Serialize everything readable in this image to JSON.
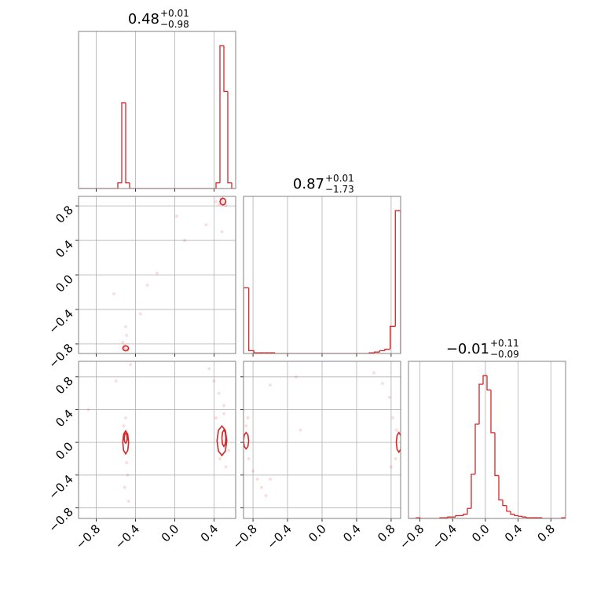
{
  "chart_data": [
    {
      "type": "histogram",
      "title": "0.48",
      "title_upper": "+0.01",
      "title_lower": "−0.98",
      "color": "#d62728",
      "grid": true,
      "bins": [
        -0.98,
        -0.94,
        -0.9,
        -0.86,
        -0.82,
        -0.78,
        -0.74,
        -0.7,
        -0.66,
        -0.62,
        -0.58,
        -0.54,
        -0.5,
        -0.46,
        -0.42,
        -0.38,
        -0.34,
        -0.3,
        -0.26,
        -0.22,
        -0.18,
        -0.14,
        -0.1,
        -0.06,
        -0.02,
        0.02,
        0.06,
        0.1,
        0.14,
        0.18,
        0.22,
        0.26,
        0.3,
        0.34,
        0.38,
        0.42,
        0.46,
        0.5,
        0.54,
        0.58,
        0.62
      ],
      "values": [
        0,
        0,
        0,
        0,
        0,
        0,
        0,
        0,
        0,
        0,
        0.04,
        0.6,
        0.04,
        0,
        0,
        0,
        0,
        0,
        0,
        0,
        0,
        0,
        0,
        0,
        0,
        0,
        0,
        0,
        0,
        0,
        0,
        0,
        0,
        0,
        0,
        0.04,
        1.0,
        0.68,
        0.04,
        0
      ],
      "xlim": [
        -0.98,
        0.62
      ],
      "xticks": [
        -0.8,
        -0.4,
        0,
        0.4
      ],
      "ylim": [
        0,
        1.1
      ]
    },
    {
      "type": "scatter",
      "color": "#d62728",
      "grid": true,
      "x": [
        -0.52,
        -0.5,
        -0.48,
        -0.51,
        -0.5,
        -0.49,
        -0.53,
        -0.35,
        -0.18,
        -0.28,
        -0.62,
        0.1,
        0.02,
        0.32,
        0.45,
        0.48,
        0.5,
        0.52,
        0.47,
        0.42,
        0.48
      ],
      "y": [
        -0.84,
        -0.86,
        -0.87,
        -0.82,
        -0.6,
        -0.7,
        -0.78,
        -0.45,
        0.02,
        -0.12,
        -0.22,
        0.4,
        0.68,
        0.58,
        0.82,
        0.86,
        0.84,
        0.8,
        0.88,
        0.85,
        0.5
      ],
      "contours": [
        {
          "x": [
            0.52,
            0.511,
            0.49,
            0.469,
            0.46,
            0.469,
            0.49,
            0.511
          ],
          "y": [
            0.85,
            0.878,
            0.89,
            0.878,
            0.85,
            0.822,
            0.81,
            0.822
          ]
        },
        {
          "x": [
            -0.47,
            -0.479,
            -0.5,
            -0.521,
            -0.53,
            -0.521,
            -0.5,
            -0.479
          ],
          "y": [
            -0.85,
            -0.829,
            -0.82,
            -0.829,
            -0.85,
            -0.871,
            -0.88,
            -0.871
          ]
        }
      ],
      "xlim": [
        -0.98,
        0.62
      ],
      "xticks": [
        -0.8,
        -0.4,
        0,
        0.4
      ],
      "ylim": [
        -0.91,
        0.91
      ],
      "yticks": [
        {
          "value": -0.8,
          "label": "−0.8"
        },
        {
          "value": -0.4,
          "label": "−0.4"
        },
        {
          "value": 0,
          "label": "0.0"
        },
        0.4,
        0.8
      ]
    },
    {
      "type": "histogram",
      "title": "0.87",
      "title_upper": "+0.01",
      "title_lower": "−1.73",
      "color": "#d62728",
      "grid": true,
      "bins": [
        -0.91,
        -0.849,
        -0.789,
        -0.728,
        -0.667,
        -0.607,
        -0.546,
        -0.485,
        -0.425,
        -0.364,
        -0.303,
        -0.243,
        -0.182,
        -0.121,
        -0.061,
        0.0,
        0.061,
        0.121,
        0.182,
        0.243,
        0.303,
        0.364,
        0.425,
        0.485,
        0.546,
        0.607,
        0.667,
        0.728,
        0.789,
        0.849,
        0.91
      ],
      "values": [
        0.46,
        0.02,
        0.005,
        0.005,
        0.005,
        0.005,
        0,
        0,
        0,
        0,
        0,
        0,
        0,
        0,
        0,
        0,
        0,
        0,
        0,
        0,
        0,
        0,
        0,
        0,
        0.005,
        0.01,
        0.02,
        0.03,
        0.19,
        1.0
      ],
      "xlim": [
        -0.91,
        0.91
      ],
      "xticks": [
        -0.8,
        -0.4,
        0,
        0.4,
        0.8
      ],
      "ylim": [
        0,
        1.1
      ]
    },
    {
      "type": "scatter",
      "color": "#d62728",
      "grid": true,
      "x": [
        -0.5,
        -0.49,
        -0.52,
        -0.48,
        -0.51,
        -0.47,
        -0.6,
        -0.88,
        -0.45,
        0.45,
        0.5,
        0.42,
        0.52,
        0.46,
        0.4,
        0.5,
        0.55,
        0.35
      ],
      "y": [
        0.3,
        -0.25,
        0.2,
        -0.4,
        -0.55,
        -0.72,
        0.75,
        0.4,
        0.95,
        0.6,
        0.45,
        0.3,
        -0.3,
        -0.2,
        0.75,
        0.35,
        -0.1,
        0.9
      ],
      "contours": [
        {
          "x": [
            -0.47,
            -0.479,
            -0.5,
            -0.521,
            -0.53,
            -0.521,
            -0.5,
            -0.479
          ],
          "y": [
            0,
            0.099,
            0.14,
            0.099,
            0,
            -0.099,
            -0.14,
            -0.099
          ]
        },
        {
          "x": [
            -0.485,
            -0.489,
            -0.5,
            -0.511,
            -0.515,
            -0.511,
            -0.5,
            -0.489
          ],
          "y": [
            0.05,
            0.092,
            0.11,
            0.092,
            0.05,
            0.008,
            -0.01,
            0.008
          ]
        },
        {
          "x": [
            0.53,
            0.515,
            0.48,
            0.445,
            0.43,
            0.445,
            0.48,
            0.515
          ],
          "y": [
            0.02,
            0.147,
            0.2,
            0.147,
            0.02,
            -0.107,
            -0.16,
            -0.107
          ]
        },
        {
          "x": [
            0.52,
            0.514,
            0.5,
            0.486,
            0.48,
            0.486,
            0.5,
            0.514
          ],
          "y": [
            0.05,
            0.121,
            0.15,
            0.121,
            0.05,
            -0.021,
            -0.05,
            -0.021
          ]
        }
      ],
      "xlim": [
        -0.98,
        0.62
      ],
      "xticks": [
        {
          "value": -0.8,
          "label": "−0.8"
        },
        {
          "value": -0.4,
          "label": "−0.4"
        },
        {
          "value": 0,
          "label": "0.0"
        },
        0.4
      ],
      "ylim": [
        -0.93,
        0.99
      ],
      "yticks": [
        {
          "value": -0.8,
          "label": "−0.8"
        },
        {
          "value": -0.4,
          "label": "−0.4"
        },
        {
          "value": 0,
          "label": "0.0"
        },
        0.4,
        0.8
      ]
    },
    {
      "type": "scatter",
      "color": "#d62728",
      "grid": true,
      "x": [
        -0.88,
        -0.85,
        -0.8,
        -0.75,
        -0.7,
        -0.65,
        -0.86,
        -0.6,
        -0.3,
        -0.6,
        0.82,
        0.78,
        0.7,
        0.85,
        0.8,
        0.86,
        0.6,
        -0.25
      ],
      "y": [
        0.2,
        -0.2,
        -0.35,
        -0.45,
        -0.55,
        -0.65,
        0.3,
        0.7,
        0.8,
        -0.45,
        0.3,
        0.55,
        0.72,
        -0.2,
        -0.3,
        0.15,
        0.85,
        0.15
      ],
      "contours": [
        {
          "x": [
            -0.85,
            -0.859,
            -0.88,
            -0.901,
            -0.91,
            -0.901,
            -0.88,
            -0.859
          ],
          "y": [
            0.02,
            0.091,
            0.12,
            0.091,
            0.02,
            -0.051,
            -0.08,
            -0.051
          ]
        },
        {
          "x": [
            0.92,
            0.911,
            0.89,
            0.869,
            0.86,
            0.869,
            0.89,
            0.911
          ],
          "y": [
            0,
            0.085,
            0.12,
            0.085,
            0,
            -0.085,
            -0.12,
            -0.085
          ]
        }
      ],
      "xlim": [
        -0.91,
        0.91
      ],
      "xticks": [
        {
          "value": -0.8,
          "label": "−0.8"
        },
        {
          "value": -0.4,
          "label": "−0.4"
        },
        {
          "value": 0,
          "label": "0.0"
        },
        0.4,
        0.8
      ],
      "ylim": [
        -0.93,
        0.99
      ],
      "yticks": [
        -0.8,
        -0.4,
        0,
        0.4,
        0.8
      ]
    },
    {
      "type": "histogram",
      "title": "−0.01",
      "title_upper": "+0.11",
      "title_lower": "−0.09",
      "color": "#d62728",
      "grid": true,
      "bins": [
        -0.94,
        -0.892,
        -0.844,
        -0.796,
        -0.748,
        -0.7,
        -0.652,
        -0.604,
        -0.556,
        -0.508,
        -0.46,
        -0.412,
        -0.364,
        -0.316,
        -0.268,
        -0.22,
        -0.172,
        -0.124,
        -0.076,
        -0.028,
        0.02,
        0.068,
        0.116,
        0.164,
        0.212,
        0.26,
        0.308,
        0.356,
        0.404,
        0.452,
        0.5,
        0.548,
        0.596,
        0.644,
        0.692,
        0.74,
        0.788,
        0.836,
        0.884,
        0.932,
        0.98
      ],
      "values": [
        0,
        0,
        0.005,
        0,
        0,
        0,
        0,
        0,
        0.005,
        0.005,
        0.01,
        0.01,
        0.02,
        0.02,
        0.03,
        0.07,
        0.31,
        0.66,
        0.94,
        1.0,
        0.9,
        0.6,
        0.3,
        0.13,
        0.09,
        0.05,
        0.03,
        0.02,
        0.015,
        0.01,
        0.005,
        0.005,
        0.005,
        0.005,
        0,
        0,
        0,
        0,
        0,
        0.005
      ],
      "xlim": [
        -0.94,
        0.98
      ],
      "xticks": [
        {
          "value": -0.8,
          "label": "−0.8"
        },
        {
          "value": -0.4,
          "label": "−0.4"
        },
        {
          "value": 0,
          "label": "0.0"
        },
        0.4,
        0.8
      ],
      "ylim": [
        0,
        1.1
      ]
    }
  ]
}
